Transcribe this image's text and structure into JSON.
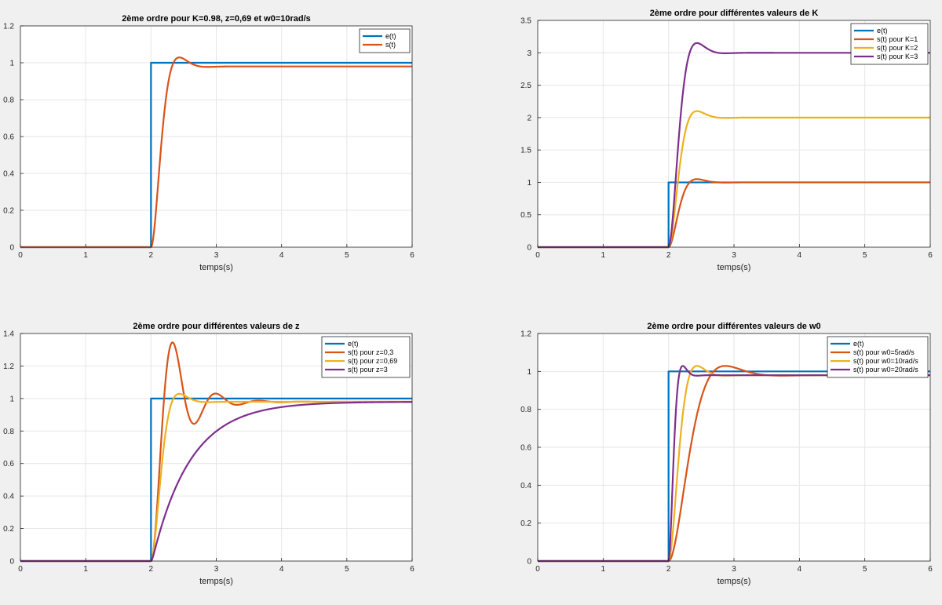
{
  "figure": {
    "background": "#f0f0f0"
  },
  "colors": {
    "e": "#0072bd",
    "s1": "#d95319",
    "s2": "#edb120",
    "s3": "#7e2f8e"
  },
  "chart_data": [
    {
      "type": "line",
      "title": "2ème ordre pour K=0.98, z=0,69 et w0=10rad/s",
      "xlabel": "temps(s)",
      "ylabel": "",
      "xlim": [
        0,
        6
      ],
      "ylim": [
        0,
        1.2
      ],
      "xticks": [
        0,
        1,
        2,
        3,
        4,
        5,
        6
      ],
      "yticks": [
        0,
        0.2,
        0.4,
        0.6,
        0.8,
        1,
        1.2
      ],
      "grid": true,
      "legend_position": "top-right",
      "series": [
        {
          "name": "e(t)",
          "kind": "step",
          "t0": 2,
          "amplitude": 1,
          "color": "#0072bd"
        },
        {
          "name": "s(t)",
          "kind": "second_order",
          "t0": 2,
          "K": 0.98,
          "z": 0.69,
          "w0": 10,
          "color": "#d95319"
        }
      ]
    },
    {
      "type": "line",
      "title": "2ème ordre pour différentes valeurs de K",
      "xlabel": "temps(s)",
      "ylabel": "",
      "xlim": [
        0,
        6
      ],
      "ylim": [
        0,
        3.5
      ],
      "xticks": [
        0,
        1,
        2,
        3,
        4,
        5,
        6
      ],
      "yticks": [
        0,
        0.5,
        1,
        1.5,
        2,
        2.5,
        3,
        3.5
      ],
      "grid": true,
      "legend_position": "top-right",
      "series": [
        {
          "name": "e(t)",
          "kind": "step",
          "t0": 2,
          "amplitude": 1,
          "color": "#0072bd"
        },
        {
          "name": "s(t) pour K=1",
          "kind": "second_order",
          "t0": 2,
          "K": 1,
          "z": 0.69,
          "w0": 10,
          "color": "#d95319"
        },
        {
          "name": "s(t) pour K=2",
          "kind": "second_order",
          "t0": 2,
          "K": 2,
          "z": 0.69,
          "w0": 10,
          "color": "#edb120"
        },
        {
          "name": "s(t) pour K=3",
          "kind": "second_order",
          "t0": 2,
          "K": 3,
          "z": 0.69,
          "w0": 10,
          "color": "#7e2f8e"
        }
      ]
    },
    {
      "type": "line",
      "title": "2ème ordre pour différentes valeurs de z",
      "xlabel": "temps(s)",
      "ylabel": "",
      "xlim": [
        0,
        6
      ],
      "ylim": [
        0,
        1.4
      ],
      "xticks": [
        0,
        1,
        2,
        3,
        4,
        5,
        6
      ],
      "yticks": [
        0,
        0.2,
        0.4,
        0.6,
        0.8,
        1,
        1.2,
        1.4
      ],
      "grid": true,
      "legend_position": "top-right",
      "series": [
        {
          "name": "e(t)",
          "kind": "step",
          "t0": 2,
          "amplitude": 1,
          "color": "#0072bd"
        },
        {
          "name": "s(t) pour z=0,3",
          "kind": "second_order",
          "t0": 2,
          "K": 0.98,
          "z": 0.3,
          "w0": 10,
          "color": "#d95319"
        },
        {
          "name": "s(t) pour z=0,69",
          "kind": "second_order",
          "t0": 2,
          "K": 0.98,
          "z": 0.69,
          "w0": 10,
          "color": "#edb120"
        },
        {
          "name": "s(t) pour z=3",
          "kind": "second_order",
          "t0": 2,
          "K": 0.98,
          "z": 3,
          "w0": 10,
          "color": "#7e2f8e"
        }
      ]
    },
    {
      "type": "line",
      "title": "2ème ordre pour différentes valeurs de w0",
      "xlabel": "temps(s)",
      "ylabel": "",
      "xlim": [
        0,
        6
      ],
      "ylim": [
        0,
        1.2
      ],
      "xticks": [
        0,
        1,
        2,
        3,
        4,
        5,
        6
      ],
      "yticks": [
        0,
        0.2,
        0.4,
        0.6,
        0.8,
        1,
        1.2
      ],
      "grid": true,
      "legend_position": "top-right",
      "series": [
        {
          "name": "e(t)",
          "kind": "step",
          "t0": 2,
          "amplitude": 1,
          "color": "#0072bd"
        },
        {
          "name": "s(t) pour w0=5rad/s",
          "kind": "second_order",
          "t0": 2,
          "K": 0.98,
          "z": 0.69,
          "w0": 5,
          "color": "#d95319"
        },
        {
          "name": "s(t) pour w0=10rad/s",
          "kind": "second_order",
          "t0": 2,
          "K": 0.98,
          "z": 0.69,
          "w0": 10,
          "color": "#edb120"
        },
        {
          "name": "s(t) pour w0=20rad/s",
          "kind": "second_order",
          "t0": 2,
          "K": 0.98,
          "z": 0.69,
          "w0": 20,
          "color": "#7e2f8e"
        }
      ]
    }
  ]
}
